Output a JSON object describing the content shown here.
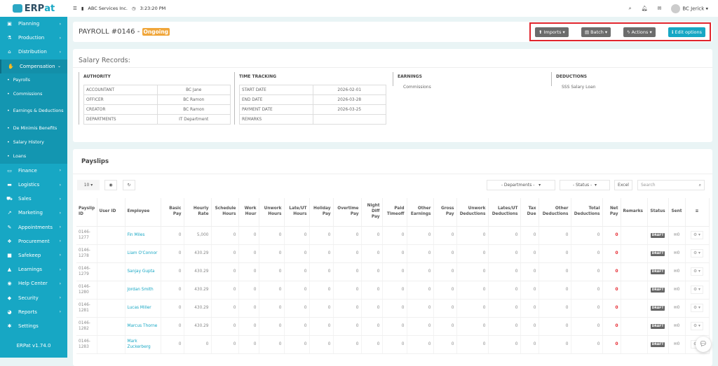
{
  "app": {
    "logo": "ERPat",
    "version": "ERPat v1.74.0"
  },
  "sidebar": {
    "top": [
      {
        "label": "Planning",
        "icon": "briefcase-icon",
        "g": "▣"
      },
      {
        "label": "Production",
        "icon": "flask-icon",
        "g": "⚗"
      },
      {
        "label": "Distribution",
        "icon": "bank-icon",
        "g": "⌂"
      },
      {
        "label": "Compensation",
        "icon": "handshake-icon",
        "g": "✋"
      }
    ],
    "sub": [
      "Payrolls",
      "Commissions",
      "Earnings & Deductions",
      "De Minimis Benefits",
      "Salary History",
      "Loans"
    ],
    "bottom": [
      {
        "label": "Finance",
        "icon": "money-icon",
        "g": "▭"
      },
      {
        "label": "Logistics",
        "icon": "truck-icon",
        "g": "▬"
      },
      {
        "label": "Sales",
        "icon": "cart-icon",
        "g": "⛟"
      },
      {
        "label": "Marketing",
        "icon": "chart-line-icon",
        "g": "↗"
      },
      {
        "label": "Appointments",
        "icon": "edit-icon",
        "g": "✎"
      },
      {
        "label": "Procurement",
        "icon": "cubes-icon",
        "g": "❖"
      },
      {
        "label": "Safekeep",
        "icon": "safe-icon",
        "g": "■"
      },
      {
        "label": "Learnings",
        "icon": "graduation-cap-icon",
        "g": "▲"
      },
      {
        "label": "Help Center",
        "icon": "life-ring-icon",
        "g": "◉"
      },
      {
        "label": "Security",
        "icon": "shield-icon",
        "g": "◆"
      },
      {
        "label": "Reports",
        "icon": "pie-chart-icon",
        "g": "◕"
      },
      {
        "label": "Settings",
        "icon": "wrench-icon",
        "g": "✱",
        "nochev": true
      }
    ]
  },
  "topbar": {
    "company": "ABC Services Inc.",
    "time": "3:23:20 PM",
    "user": "BC Jerick"
  },
  "header": {
    "title": "PAYROLL #0146 -",
    "status": "Ongoing",
    "imports": "Imports",
    "batch": "Batch",
    "actions": "Actions",
    "edit": "Edit options"
  },
  "salary": {
    "title": "Salary Records:",
    "authority": {
      "heading": "AUTHORITY",
      "rows": [
        [
          "ACCOUNTANT",
          "BC Jane"
        ],
        [
          "OFFICER",
          "BC Ramon"
        ],
        [
          "CREATOR",
          "BC Ramon"
        ],
        [
          "DEPARTMENTS",
          "IT Department"
        ]
      ]
    },
    "time": {
      "heading": "TIME TRACKING",
      "rows": [
        [
          "START DATE",
          "2026-02-01"
        ],
        [
          "END DATE",
          "2026-03-28"
        ],
        [
          "PAYMENT DATE",
          "2026-03-25"
        ],
        [
          "REMARKS",
          ""
        ]
      ]
    },
    "earnings": {
      "heading": "EARNINGS",
      "items": [
        "Commissions"
      ]
    },
    "deductions": {
      "heading": "DEDUCTIONS",
      "items": [
        "SSS Salary Loan"
      ]
    }
  },
  "payslips": {
    "title": "Payslips",
    "page_size": "10",
    "departments": "- Departments -",
    "status": "- Status -",
    "excel": "Excel",
    "search_placeholder": "Search",
    "columns": [
      "Payslip ID",
      "User ID",
      "Employee",
      "Basic Pay",
      "Hourly Rate",
      "Schedule Hours",
      "Work Hour",
      "Unwork Hours",
      "Late/UT Hours",
      "Holiday Pay",
      "Overtime Pay",
      "Night Diff Pay",
      "Paid Timeoff",
      "Other Earnings",
      "Gross Pay",
      "Unwork Deductions",
      "Lates/UT Deductions",
      "Tax Due",
      "Other Deductions",
      "Total Deductions",
      "Net Pay",
      "Remarks",
      "Status",
      "Sent",
      "≡"
    ],
    "rows": [
      [
        "0146-1277",
        "",
        "Fin Miles",
        "0",
        "5,000",
        "0",
        "0",
        "0",
        "0",
        "0",
        "0",
        "0",
        "0",
        "0",
        "0",
        "0",
        "0",
        "0",
        "0",
        "0",
        "0",
        "",
        "DRAFT",
        "0"
      ],
      [
        "0146-1278",
        "",
        "Liam O'Connor",
        "0",
        "430.29",
        "0",
        "0",
        "0",
        "0",
        "0",
        "0",
        "0",
        "0",
        "0",
        "0",
        "0",
        "0",
        "0",
        "0",
        "0",
        "0",
        "",
        "DRAFT",
        "0"
      ],
      [
        "0146-1279",
        "",
        "Sanjay Gupta",
        "0",
        "430.29",
        "0",
        "0",
        "0",
        "0",
        "0",
        "0",
        "0",
        "0",
        "0",
        "0",
        "0",
        "0",
        "0",
        "0",
        "0",
        "0",
        "",
        "DRAFT",
        "0"
      ],
      [
        "0146-1280",
        "",
        "Jordan Smith",
        "0",
        "430.29",
        "0",
        "0",
        "0",
        "0",
        "0",
        "0",
        "0",
        "0",
        "0",
        "0",
        "0",
        "0",
        "0",
        "0",
        "0",
        "0",
        "",
        "DRAFT",
        "0"
      ],
      [
        "0146-1281",
        "",
        "Lucas Miller",
        "0",
        "430.29",
        "0",
        "0",
        "0",
        "0",
        "0",
        "0",
        "0",
        "0",
        "0",
        "0",
        "0",
        "0",
        "0",
        "0",
        "0",
        "0",
        "",
        "DRAFT",
        "0"
      ],
      [
        "0146-1282",
        "",
        "Marcus Thorne",
        "0",
        "430.29",
        "0",
        "0",
        "0",
        "0",
        "0",
        "0",
        "0",
        "0",
        "0",
        "0",
        "0",
        "0",
        "0",
        "0",
        "0",
        "0",
        "",
        "DRAFT",
        "0"
      ],
      [
        "0146-1283",
        "",
        "Mark Zuckerberg",
        "0",
        "0",
        "0",
        "0",
        "0",
        "0",
        "0",
        "0",
        "0",
        "0",
        "0",
        "0",
        "0",
        "0",
        "0",
        "0",
        "0",
        "0",
        "",
        "DRAFT",
        "0"
      ]
    ]
  }
}
